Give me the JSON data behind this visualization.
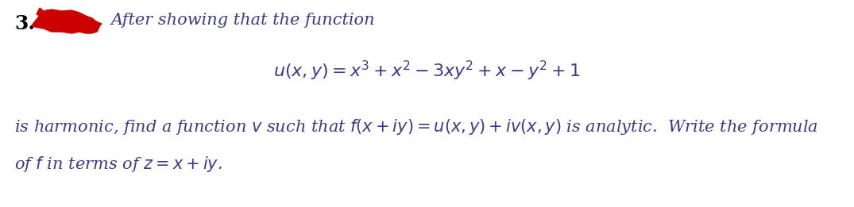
{
  "background_color": "#ffffff",
  "number_text": "3.",
  "number_fontsize": 18,
  "number_bold": true,
  "line1_text": "After showing that the function",
  "line1_fontsize": 15,
  "formula_text": "$u(x, y) = x^3 + x^2 - 3xy^2 + x - y^2 + 1$",
  "formula_fontsize": 16,
  "line2_text": "is harmonic, find a function $v$ such that $f(x+iy) = u(x, y) +iv(x, y)$ is analytic.  Write the formula",
  "line2_fontsize": 15,
  "line3_text": "of $f$ in terms of $z = x + iy$.",
  "line3_fontsize": 15,
  "text_color": "#3a3a8c",
  "number_color": "#000000",
  "scribble_color": "#cc0000",
  "fig_width": 10.75,
  "fig_height": 2.61,
  "dpi": 100
}
